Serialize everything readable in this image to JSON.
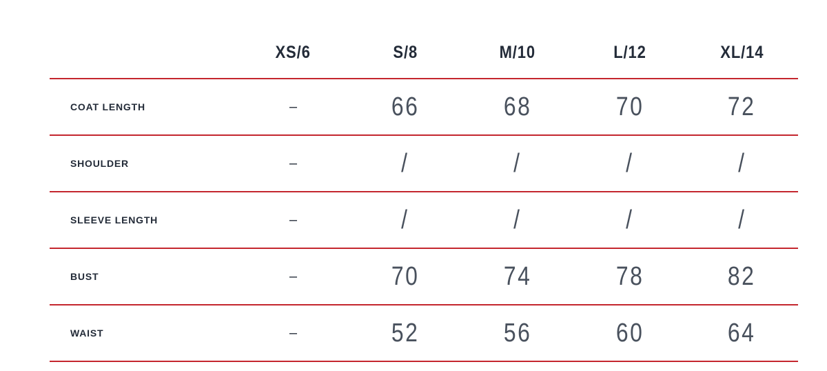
{
  "size_chart": {
    "columns": [
      "XS/6",
      "S/8",
      "M/10",
      "L/12",
      "XL/14"
    ],
    "rows": [
      {
        "label": "COAT LENGTH",
        "values": [
          "–",
          "66",
          "68",
          "70",
          "72"
        ]
      },
      {
        "label": "SHOULDER",
        "values": [
          "–",
          "/",
          "/",
          "/",
          "/"
        ]
      },
      {
        "label": "SLEEVE LENGTH",
        "values": [
          "–",
          "/",
          "/",
          "/",
          "/"
        ]
      },
      {
        "label": "BUST",
        "values": [
          "–",
          "70",
          "74",
          "78",
          "82"
        ]
      },
      {
        "label": "WAIST",
        "values": [
          "–",
          "52",
          "56",
          "60",
          "64"
        ]
      }
    ],
    "colors": {
      "divider": "#C4262E",
      "heading_text": "#232B38",
      "value_text": "#49515D"
    }
  }
}
